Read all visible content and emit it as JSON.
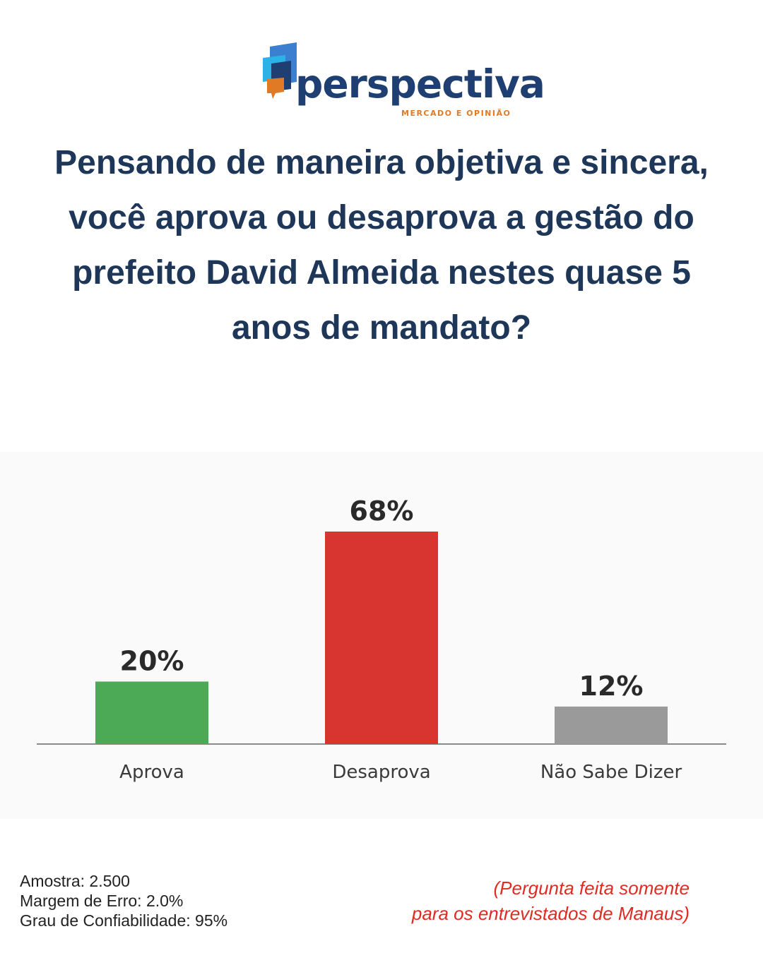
{
  "logo": {
    "name": "perspectiva",
    "tagline": "MERCADO E OPINIÃO"
  },
  "question": "Pensando de maneira objetiva e sincera, você aprova ou desaprova a gestão do prefeito David Almeida nestes quase 5 anos de mandato?",
  "chart_data": {
    "type": "bar",
    "categories": [
      "Aprova",
      "Desaprova",
      "Não Sabe Dizer"
    ],
    "values": [
      20,
      68,
      12
    ],
    "labels": [
      "20%",
      "68%",
      "12%"
    ],
    "colors": [
      "#4caa57",
      "#d93530",
      "#9a9a9a"
    ],
    "ylim": [
      0,
      100
    ],
    "grid": false
  },
  "footer": {
    "sample": "Amostra: 2.500",
    "margin": "Margem de Erro: 2.0%",
    "confidence": "Grau de Confiabilidade: 95%",
    "note_line1": "(Pergunta feita somente",
    "note_line2": "para os entrevistados de Manaus)"
  }
}
